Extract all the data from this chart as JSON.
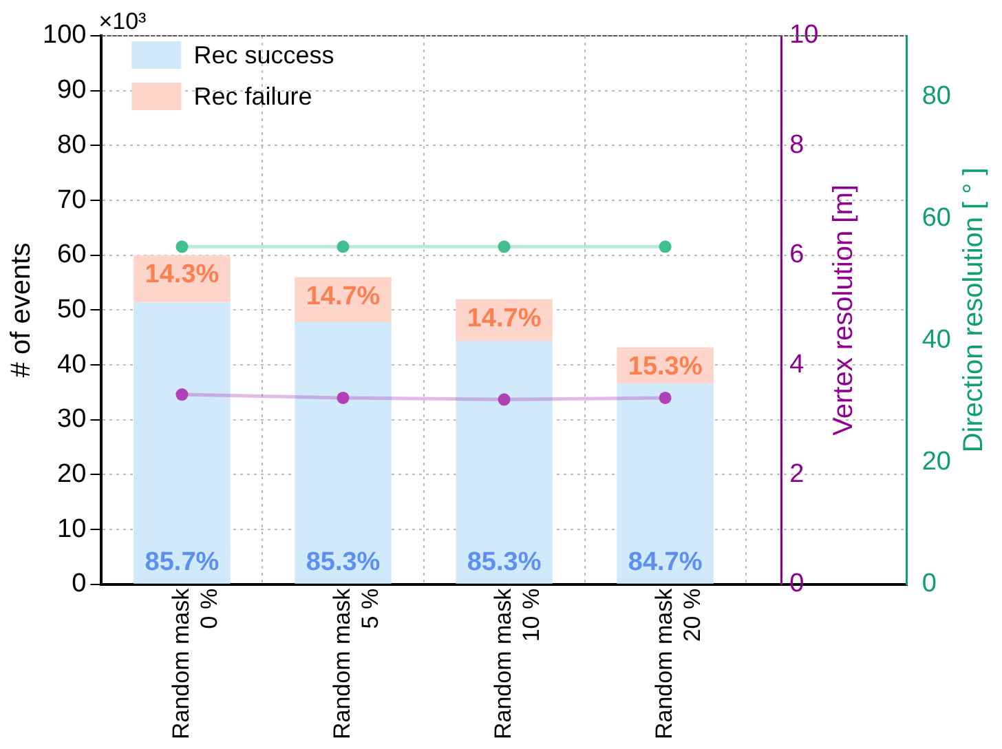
{
  "chart_data": {
    "type": "bar",
    "stacked": true,
    "categories": [
      "Random mask\n0 %",
      "Random mask\n5 %",
      "Random mask\n10 %",
      "Random mask\n20 %",
      null
    ],
    "ylabel": "# of events",
    "y2label": "Vertex resolution [m]",
    "y3label": "Direction resolution [ ° ]",
    "annotations": [
      "×10³",
      {
        "text": "85.7%",
        "x": "Random mask\n0 %",
        "y": 0
      },
      {
        "text": "85.3%",
        "x": "Random mask\n5 %",
        "y": 0
      },
      {
        "text": "85.3%",
        "x": "Random mask\n10 %",
        "y": 0
      },
      {
        "text": "84.7%",
        "x": "Random mask\n20 %",
        "y": 0
      },
      {
        "text": "14.3%",
        "x": "Random mask\n0 %",
        "y": 60
      },
      {
        "text": "14.7%",
        "x": "Random mask\n5 %",
        "y": 56
      },
      {
        "text": "14.7%",
        "x": "Random mask\n10 %",
        "y": 52
      },
      {
        "text": "15.3%",
        "x": "Random mask\n20 %",
        "y": 43.2
      }
    ],
    "ylim": [
      0,
      100
    ],
    "yticks": [
      0,
      10,
      20,
      30,
      40,
      50,
      60,
      70,
      80,
      90,
      100
    ],
    "y2lim": [
      0,
      10
    ],
    "y2ticks": [
      0,
      2,
      4,
      6,
      8,
      10
    ],
    "y3lim": [
      0,
      90
    ],
    "y3ticks": [
      0,
      20,
      40,
      60,
      80
    ],
    "grid": true,
    "legend": "top left",
    "series": [
      {
        "name": "Rec success",
        "color": "#d0e9fb",
        "values": [
          51.4,
          47.8,
          44.4,
          36.6,
          null
        ]
      },
      {
        "name": "Rec failure",
        "color": "#fdd5cb",
        "values": [
          8.6,
          8.2,
          7.6,
          6.6,
          null
        ]
      },
      {
        "type": "line",
        "axis": "y2",
        "marker": "circle",
        "color": "#b040b8",
        "values": [
          3.46,
          3.4,
          3.37,
          3.4,
          null
        ]
      },
      {
        "type": "line",
        "axis": "y3",
        "marker": "circle",
        "color": "#40c090",
        "values": [
          55.4,
          55.4,
          55.4,
          55.4,
          null
        ]
      }
    ]
  }
}
